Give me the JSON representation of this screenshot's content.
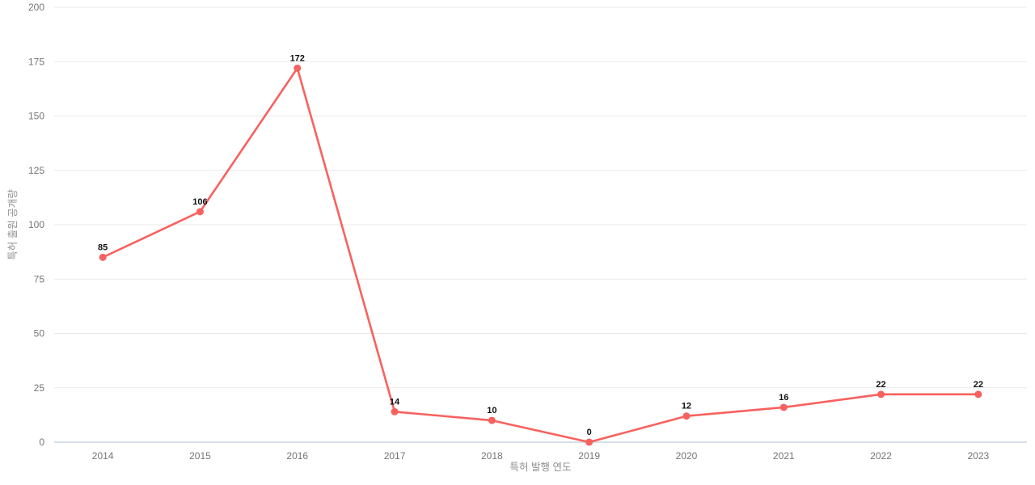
{
  "chart_data": {
    "type": "line",
    "categories": [
      "2014",
      "2015",
      "2016",
      "2017",
      "2018",
      "2019",
      "2020",
      "2021",
      "2022",
      "2023"
    ],
    "values": [
      85,
      106,
      172,
      14,
      10,
      0,
      12,
      16,
      22,
      22
    ],
    "title": "",
    "xlabel": "특허 발행 연도",
    "ylabel": "특허 출원 공개량",
    "ylim": [
      0,
      200
    ],
    "ytick_interval": 25,
    "yticks": [
      0,
      25,
      50,
      75,
      100,
      125,
      150,
      175,
      200
    ],
    "grid": true,
    "legend": false,
    "point_labels_shown": true,
    "colors": {
      "line": "#f8615e",
      "point": "#f8615e",
      "gridline": "#e9e9e9",
      "axis_line": "#c9d5e3",
      "tick_text": "#757575",
      "axis_title_text": "#8e8e8e",
      "point_label_text": "#111111",
      "background": "#ffffff"
    }
  }
}
